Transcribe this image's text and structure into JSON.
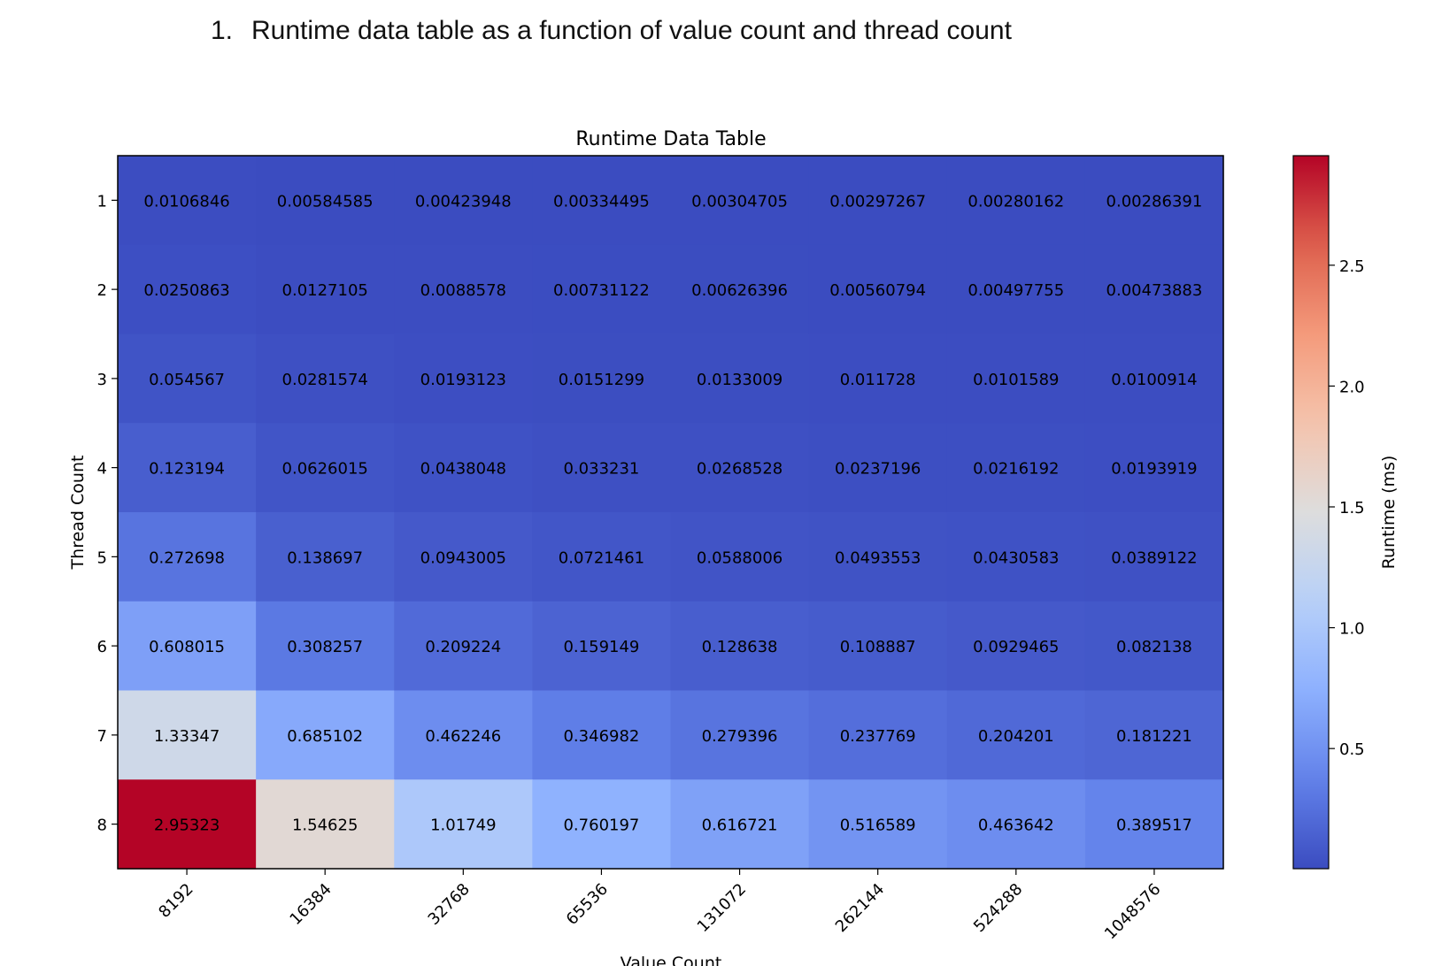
{
  "heading": {
    "number": "1.",
    "text": "Runtime data table as a function of value count and thread count"
  },
  "chart_data": {
    "type": "heatmap",
    "title": "Runtime Data Table",
    "xlabel": "Value Count",
    "ylabel": "Thread Count",
    "x": [
      "8192",
      "16384",
      "32768",
      "65536",
      "131072",
      "262144",
      "524288",
      "1048576"
    ],
    "y": [
      "1",
      "2",
      "3",
      "4",
      "5",
      "6",
      "7",
      "8"
    ],
    "values": [
      [
        0.0106846,
        0.00584585,
        0.00423948,
        0.00334495,
        0.00304705,
        0.00297267,
        0.00280162,
        0.00286391
      ],
      [
        0.0250863,
        0.0127105,
        0.0088578,
        0.00731122,
        0.00626396,
        0.00560794,
        0.00497755,
        0.00473883
      ],
      [
        0.054567,
        0.0281574,
        0.0193123,
        0.0151299,
        0.0133009,
        0.011728,
        0.0101589,
        0.0100914
      ],
      [
        0.123194,
        0.0626015,
        0.0438048,
        0.033231,
        0.0268528,
        0.0237196,
        0.0216192,
        0.0193919
      ],
      [
        0.272698,
        0.138697,
        0.0943005,
        0.0721461,
        0.0588006,
        0.0493553,
        0.0430583,
        0.0389122
      ],
      [
        0.608015,
        0.308257,
        0.209224,
        0.159149,
        0.128638,
        0.108887,
        0.0929465,
        0.082138
      ],
      [
        1.33347,
        0.685102,
        0.462246,
        0.346982,
        0.279396,
        0.237769,
        0.204201,
        0.181221
      ],
      [
        2.95323,
        1.54625,
        1.01749,
        0.760197,
        0.616721,
        0.516589,
        0.463642,
        0.389517
      ]
    ],
    "colorbar": {
      "label": "Runtime (ms)",
      "ticks": [
        0.5,
        1.0,
        1.5,
        2.0,
        2.5
      ],
      "tick_labels": [
        "0.5",
        "1.0",
        "1.5",
        "2.0",
        "2.5"
      ],
      "range": [
        0.00280162,
        2.95323
      ]
    },
    "colormap": "coolwarm"
  }
}
